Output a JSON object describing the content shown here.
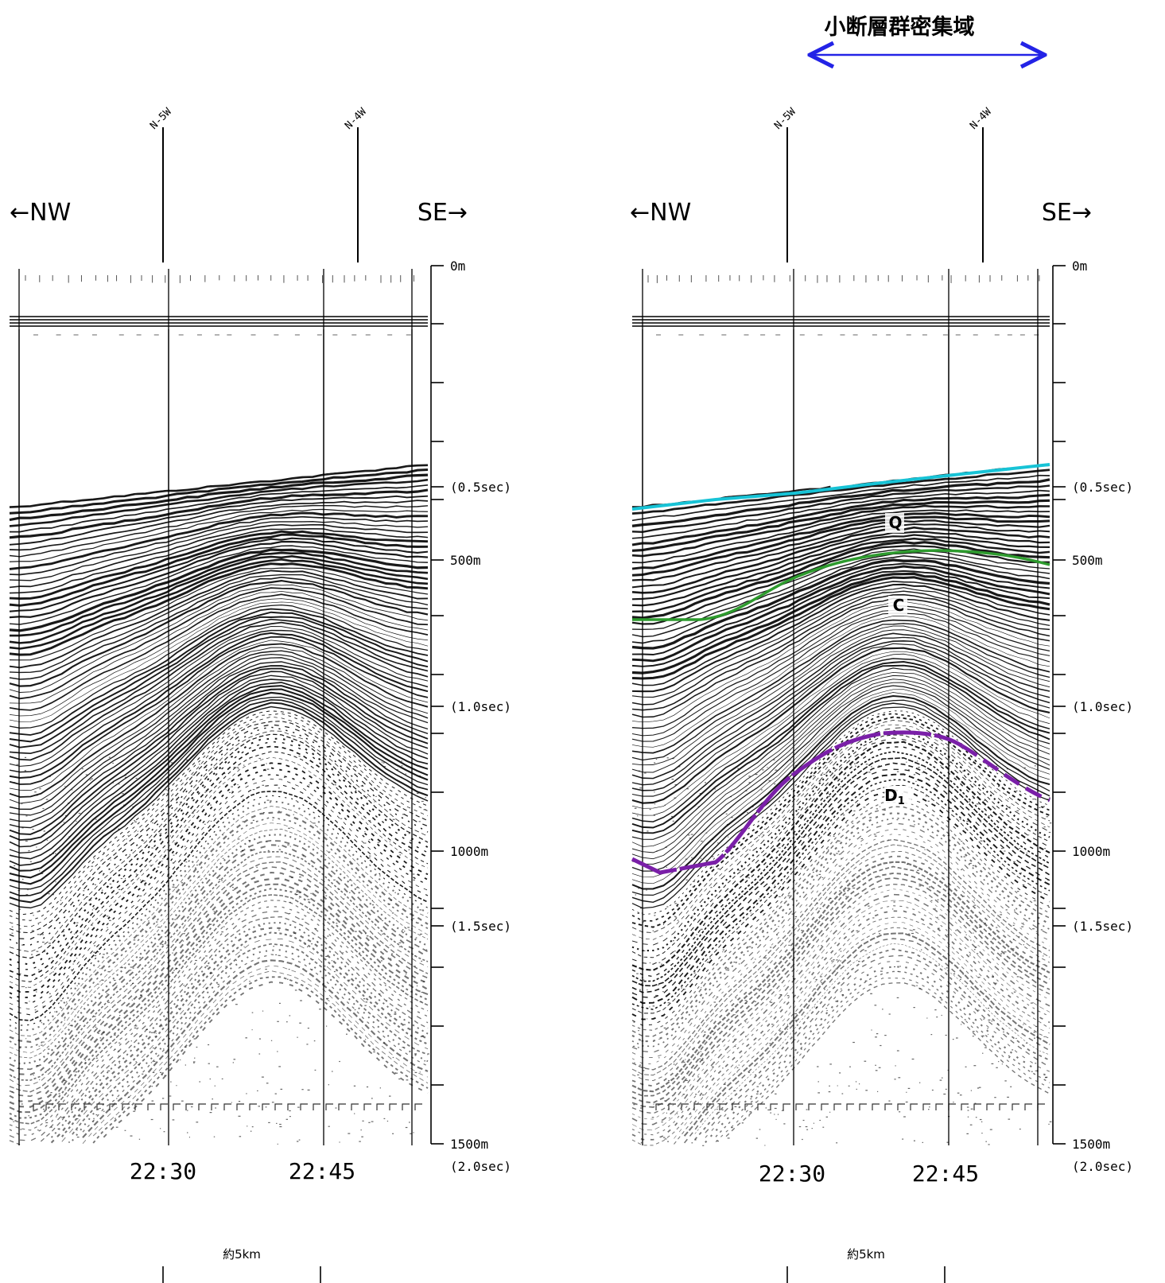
{
  "figure": {
    "fault_zone_label": "小断層群密集域",
    "colors": {
      "fault_zone_arrow": "#2323e6",
      "Q_top_line": "#17c3d6",
      "C_top_line": "#2e9b2e",
      "D1_top_line": "#7a1fa8",
      "record_ink": "#000000"
    }
  },
  "panels": [
    {
      "id": "left",
      "direction_left": "←NW",
      "direction_right": "SE→",
      "markers": [
        "N-5W",
        "N-4W"
      ],
      "depth_scale": {
        "labels": [
          "0m",
          "(0.5sec)",
          "500m",
          "(1.0sec)",
          "1000m",
          "(1.5sec)",
          "1500m",
          "(2.0sec)"
        ]
      },
      "times": [
        "22:30",
        "22:45"
      ],
      "scale_bar": "約5km",
      "unit_labels": []
    },
    {
      "id": "right",
      "direction_left": "←NW",
      "direction_right": "SE→",
      "markers": [
        "N-5W",
        "N-4W"
      ],
      "depth_scale": {
        "labels": [
          "0m",
          "(0.5sec)",
          "500m",
          "(1.0sec)",
          "1000m",
          "(1.5sec)",
          "1500m",
          "(2.0sec)"
        ]
      },
      "times": [
        "22:30",
        "22:45"
      ],
      "scale_bar": "約5km",
      "unit_labels": [
        "Q",
        "C",
        "D1"
      ]
    }
  ]
}
